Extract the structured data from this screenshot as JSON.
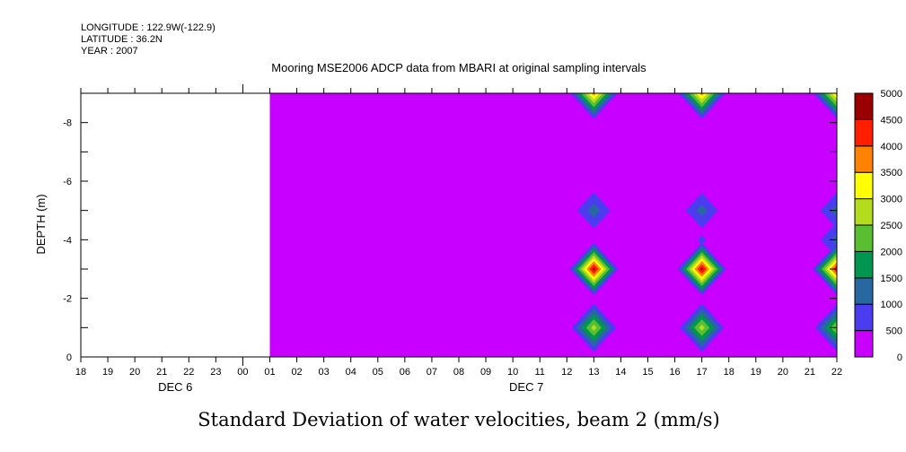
{
  "chart_data": {
    "type": "heatmap",
    "header": [
      "LONGITUDE : 122.9W(-122.9)",
      "LATITUDE : 36.2N",
      "YEAR : 2007"
    ],
    "title": "Mooring MSE2006 ADCP data from MBARI at original sampling intervals",
    "xlabel": "Standard Deviation of water velocities, beam 2 (mm/s)",
    "ylabel": "DEPTH (m)",
    "x_tick_labels": [
      "18",
      "19",
      "20",
      "21",
      "22",
      "23",
      "00",
      "01",
      "02",
      "03",
      "04",
      "05",
      "06",
      "07",
      "08",
      "09",
      "10",
      "11",
      "12",
      "13",
      "14",
      "15",
      "16",
      "17",
      "18",
      "19",
      "20",
      "21",
      "22"
    ],
    "date_labels": [
      {
        "label": "DEC 6",
        "hour_index": 3.5
      },
      {
        "label": "DEC 7",
        "hour_index": 16.5
      }
    ],
    "y_tick_labels": [
      "-8",
      "-6",
      "-4",
      "-2",
      "0"
    ],
    "y_tick_values": [
      -8,
      -6,
      -4,
      -2,
      0
    ],
    "ylim": [
      0,
      -9
    ],
    "xlim_hours": [
      0,
      28
    ],
    "data_start_hour": 7,
    "background_value": 0,
    "peaks": [
      {
        "hour": 19,
        "depth": -9,
        "value": 3800
      },
      {
        "hour": 19,
        "depth": -5,
        "value": 1300
      },
      {
        "hour": 19,
        "depth": -3,
        "value": 4800
      },
      {
        "hour": 19,
        "depth": -1,
        "value": 2800
      },
      {
        "hour": 23,
        "depth": -9,
        "value": 3800
      },
      {
        "hour": 23,
        "depth": -5,
        "value": 1250
      },
      {
        "hour": 23,
        "depth": -4,
        "value": 600
      },
      {
        "hour": 23,
        "depth": -3,
        "value": 4800
      },
      {
        "hour": 23,
        "depth": -1,
        "value": 2800
      },
      {
        "hour": 28,
        "depth": -9,
        "value": 3700
      },
      {
        "hour": 28,
        "depth": -5,
        "value": 1300
      },
      {
        "hour": 28,
        "depth": -4,
        "value": 1250
      },
      {
        "hour": 28,
        "depth": -3,
        "value": 4600
      },
      {
        "hour": 28,
        "depth": -1,
        "value": 2600
      }
    ],
    "colorbar": {
      "levels": [
        0,
        500,
        1000,
        1500,
        2000,
        2500,
        3000,
        3500,
        4000,
        4500,
        5000
      ],
      "labels": [
        "0",
        "500",
        "1000",
        "1500",
        "2000",
        "2500",
        "3000",
        "3500",
        "4000",
        "4500",
        "5000"
      ],
      "colors": [
        "#c800ff",
        "#4b3cf0",
        "#2868a0",
        "#009650",
        "#5abe32",
        "#b4dc1e",
        "#ffff00",
        "#ff8200",
        "#ff1e00",
        "#9b0000"
      ]
    }
  }
}
